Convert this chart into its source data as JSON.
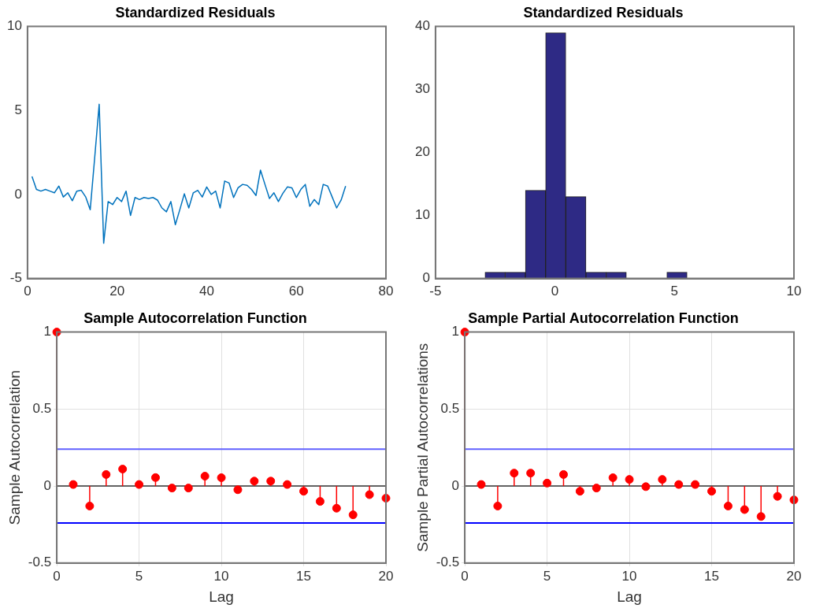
{
  "chart_data": [
    {
      "type": "line",
      "title": "Standardized Residuals",
      "color": "#0072bd",
      "xlim": [
        0,
        80
      ],
      "xticks": [
        0,
        20,
        40,
        60,
        80
      ],
      "ylim": [
        -5,
        10
      ],
      "yticks": [
        -5,
        0,
        5,
        10
      ],
      "grid": false,
      "x": [
        1,
        2,
        3,
        4,
        5,
        6,
        7,
        8,
        9,
        10,
        11,
        12,
        13,
        14,
        15,
        16,
        17,
        18,
        19,
        20,
        21,
        22,
        23,
        24,
        25,
        26,
        27,
        28,
        29,
        30,
        31,
        32,
        33,
        34,
        35,
        36,
        37,
        38,
        39,
        40,
        41,
        42,
        43,
        44,
        45,
        46,
        47,
        48,
        49,
        50,
        51,
        52,
        53,
        54,
        55,
        56,
        57,
        58,
        59,
        60,
        61,
        62,
        63,
        64,
        65,
        66,
        67,
        68,
        69,
        70,
        71
      ],
      "values": [
        1.08,
        0.3,
        0.2,
        0.3,
        0.2,
        0.1,
        0.5,
        -0.15,
        0.1,
        -0.37,
        0.2,
        0.25,
        -0.15,
        -0.9,
        2.2,
        5.37,
        -2.9,
        -0.42,
        -0.6,
        -0.18,
        -0.42,
        0.2,
        -1.25,
        -0.18,
        -0.3,
        -0.18,
        -0.24,
        -0.18,
        -0.33,
        -0.8,
        -1.03,
        -0.42,
        -1.8,
        -0.9,
        0.04,
        -0.8,
        0.1,
        0.25,
        -0.15,
        0.45,
        0,
        0.2,
        -0.8,
        0.8,
        0.68,
        -0.18,
        0.4,
        0.6,
        0.55,
        0.3,
        -0.06,
        1.45,
        0.6,
        -0.24,
        0.1,
        -0.42,
        0.07,
        0.45,
        0.4,
        -0.18,
        0.3,
        0.6,
        -0.7,
        -0.3,
        -0.6,
        0.6,
        0.5,
        -0.15,
        -0.8,
        -0.33,
        0.5
      ]
    },
    {
      "type": "histogram",
      "title": "Standardized Residuals",
      "color": "#2e2a85",
      "xlim": [
        -5,
        10
      ],
      "xticks": [
        -5,
        0,
        5,
        10
      ],
      "ylim": [
        0,
        40
      ],
      "yticks": [
        0,
        10,
        20,
        30,
        40
      ],
      "grid": false,
      "bins": [
        -2.93,
        -2.08,
        -1.24,
        -0.39,
        0.45,
        1.3,
        2.14,
        2.99,
        3.83,
        4.68,
        5.53
      ],
      "values": [
        1,
        1,
        14,
        39,
        13,
        1,
        1,
        0,
        0,
        1
      ]
    },
    {
      "type": "lollipop",
      "title": "Sample Autocorrelation Function",
      "xlabel": "Lag",
      "ylabel": "Sample Autocorrelation",
      "color": "#ff0000",
      "marker": "circle",
      "xlim": [
        0,
        20
      ],
      "xticks": [
        0,
        5,
        10,
        15,
        20
      ],
      "ylim": [
        -0.5,
        1
      ],
      "yticks": [
        -0.5,
        0,
        0.5,
        1
      ],
      "grid": true,
      "x": [
        0,
        1,
        2,
        3,
        4,
        5,
        6,
        7,
        8,
        9,
        10,
        11,
        12,
        13,
        14,
        15,
        16,
        17,
        18,
        19,
        20
      ],
      "values": [
        1,
        0.01,
        -0.13,
        0.075,
        0.11,
        0.01,
        0.055,
        -0.013,
        -0.013,
        0.064,
        0.054,
        -0.024,
        0.032,
        0.032,
        0.01,
        -0.034,
        -0.1,
        -0.144,
        -0.187,
        -0.056,
        -0.079
      ],
      "ref_lines": [
        {
          "axis": "y",
          "value": 0.24,
          "color": "#6060ff"
        },
        {
          "axis": "y",
          "value": -0.24,
          "color": "#0000ff"
        }
      ]
    },
    {
      "type": "lollipop",
      "title": "Sample Partial Autocorrelation Function",
      "xlabel": "Lag",
      "ylabel": "Sample Partial Autocorrelations",
      "color": "#ff0000",
      "marker": "circle",
      "xlim": [
        0,
        20
      ],
      "xticks": [
        0,
        5,
        10,
        15,
        20
      ],
      "ylim": [
        -0.5,
        1
      ],
      "yticks": [
        -0.5,
        0,
        0.5,
        1
      ],
      "grid": true,
      "x": [
        0,
        1,
        2,
        3,
        4,
        5,
        6,
        7,
        8,
        9,
        10,
        11,
        12,
        13,
        14,
        15,
        16,
        17,
        18,
        19,
        20
      ],
      "values": [
        1,
        0.01,
        -0.13,
        0.084,
        0.084,
        0.019,
        0.075,
        -0.034,
        -0.013,
        0.054,
        0.043,
        -0.004,
        0.043,
        0.01,
        0.01,
        -0.034,
        -0.13,
        -0.153,
        -0.198,
        -0.067,
        -0.09
      ],
      "ref_lines": [
        {
          "axis": "y",
          "value": 0.24,
          "color": "#6060ff"
        },
        {
          "axis": "y",
          "value": -0.24,
          "color": "#0000ff"
        }
      ]
    }
  ]
}
